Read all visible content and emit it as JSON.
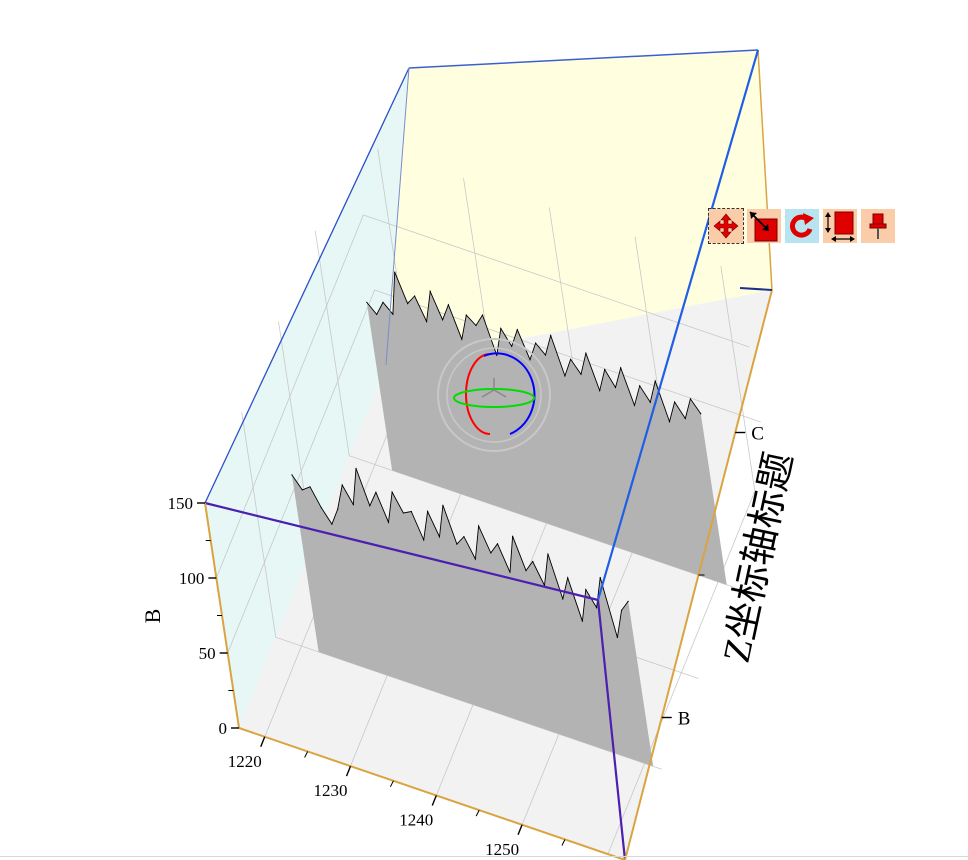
{
  "colors": {
    "back_wall": "#ffffe0",
    "side_wall": "#e6f7f5",
    "floor": "#f2f2f2",
    "series_fill": "#b3b3b3",
    "series_line": "#000000",
    "frame_blue": "#1f5fe6",
    "frame_purple": "#4b1fb0",
    "axis_orange": "#d9a441",
    "gizmo_x": "#ff0000",
    "gizmo_y": "#0000ff",
    "gizmo_z": "#00cc00"
  },
  "chart_data": {
    "type": "area",
    "view": "3D wall plot",
    "title": "",
    "xlabel": "",
    "ylabel": "B",
    "zlabel": "Z坐标轴标题",
    "xlim": [
      1217,
      1262
    ],
    "ylim": [
      0,
      150
    ],
    "x_ticks": [
      "1220",
      "1230",
      "1240",
      "1250"
    ],
    "y_ticks": [
      "0",
      "50",
      "100",
      "150"
    ],
    "z_categories": [
      "B",
      "C"
    ],
    "grid": true,
    "series": [
      {
        "name": "B",
        "x": [
          1222,
          1223,
          1224,
          1225,
          1226,
          1227,
          1228,
          1229,
          1230,
          1231,
          1232,
          1233,
          1234,
          1235,
          1236,
          1237,
          1238,
          1239,
          1240,
          1241,
          1242,
          1243,
          1244,
          1245,
          1246,
          1247,
          1248,
          1249,
          1250,
          1251,
          1252,
          1253,
          1254,
          1255,
          1256,
          1257,
          1258,
          1259,
          1260,
          1261
        ],
        "values": [
          118,
          110,
          114,
          102,
          93,
          105,
          123,
          112,
          138,
          115,
          126,
          108,
          130,
          118,
          121,
          104,
          125,
          110,
          133,
          109,
          116,
          103,
          127,
          111,
          119,
          102,
          128,
          107,
          115,
          101,
          124,
          96,
          112,
          85,
          108,
          98,
          120,
          82,
          102,
          110
        ]
      },
      {
        "name": "C",
        "x": [
          1222,
          1223,
          1224,
          1225,
          1226,
          1227,
          1228,
          1229,
          1230,
          1231,
          1232,
          1233,
          1234,
          1235,
          1236,
          1237,
          1238,
          1239,
          1240,
          1241,
          1242,
          1243,
          1244,
          1245,
          1246,
          1247,
          1248,
          1249,
          1250,
          1251,
          1252,
          1253,
          1254,
          1255,
          1256,
          1257,
          1258,
          1259,
          1260,
          1261
        ],
        "values": [
          112,
          106,
          116,
          110,
          140,
          121,
          128,
          113,
          135,
          118,
          130,
          109,
          127,
          122,
          131,
          106,
          126,
          116,
          129,
          111,
          124,
          118,
          133,
          108,
          121,
          113,
          129,
          106,
          122,
          112,
          127,
          104,
          119,
          110,
          126,
          101,
          116,
          107,
          122,
          114
        ]
      }
    ]
  },
  "toolbar": [
    {
      "name": "move-tool",
      "icon": "move-arrows-icon"
    },
    {
      "name": "scale-tool",
      "icon": "resize-diagonal-icon"
    },
    {
      "name": "rotate-tool",
      "icon": "rotate-icon"
    },
    {
      "name": "resize-tool",
      "icon": "resize-box-icon"
    },
    {
      "name": "pin-tool",
      "icon": "pin-icon"
    }
  ]
}
